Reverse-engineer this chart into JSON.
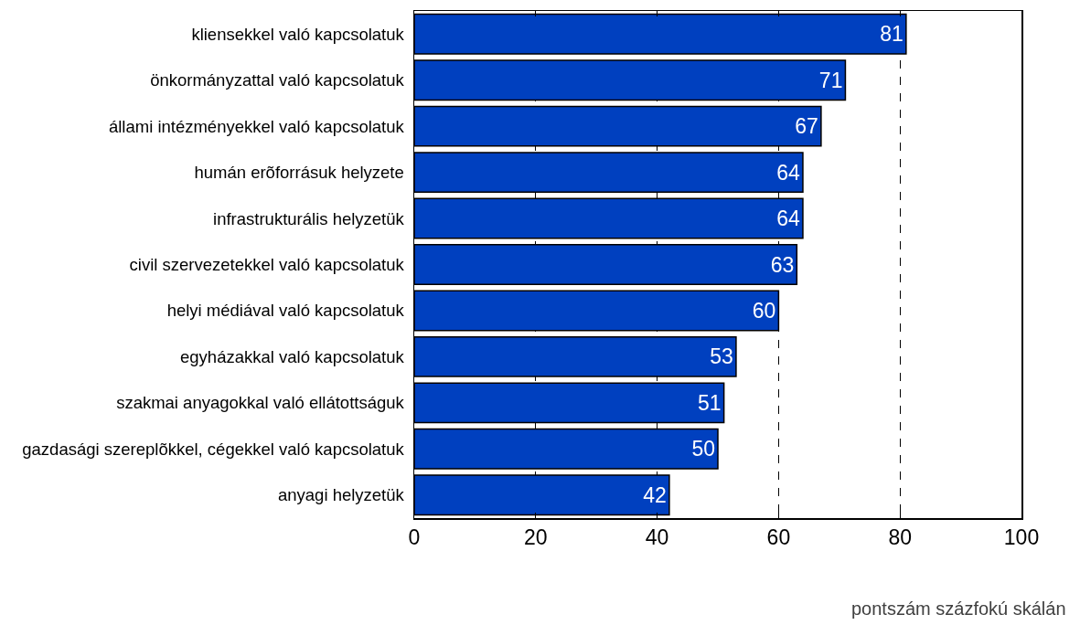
{
  "chart_data": {
    "type": "bar",
    "orientation": "horizontal",
    "categories": [
      "kliensekkel való kapcsolatuk",
      "önkormányzattal való kapcsolatuk",
      "állami intézményekkel való kapcsolatuk",
      "humán erõforrásuk helyzete",
      "infrastrukturális helyzetük",
      "civil szervezetekkel való kapcsolatuk",
      "helyi médiával való kapcsolatuk",
      "egyházakkal való kapcsolatuk",
      "szakmai anyagokkal való ellátottságuk",
      "gazdasági szereplõkkel, cégekkel való kapcsolatuk",
      "anyagi helyzetük"
    ],
    "values": [
      81,
      71,
      67,
      64,
      64,
      63,
      60,
      53,
      51,
      50,
      42
    ],
    "color": "#0040bf",
    "xlabel": "pontszám százfokú skálán",
    "xlim": [
      0,
      100
    ],
    "xticks": [
      0,
      20,
      40,
      60,
      80,
      100
    ],
    "grid": "x",
    "data_labels": true
  }
}
